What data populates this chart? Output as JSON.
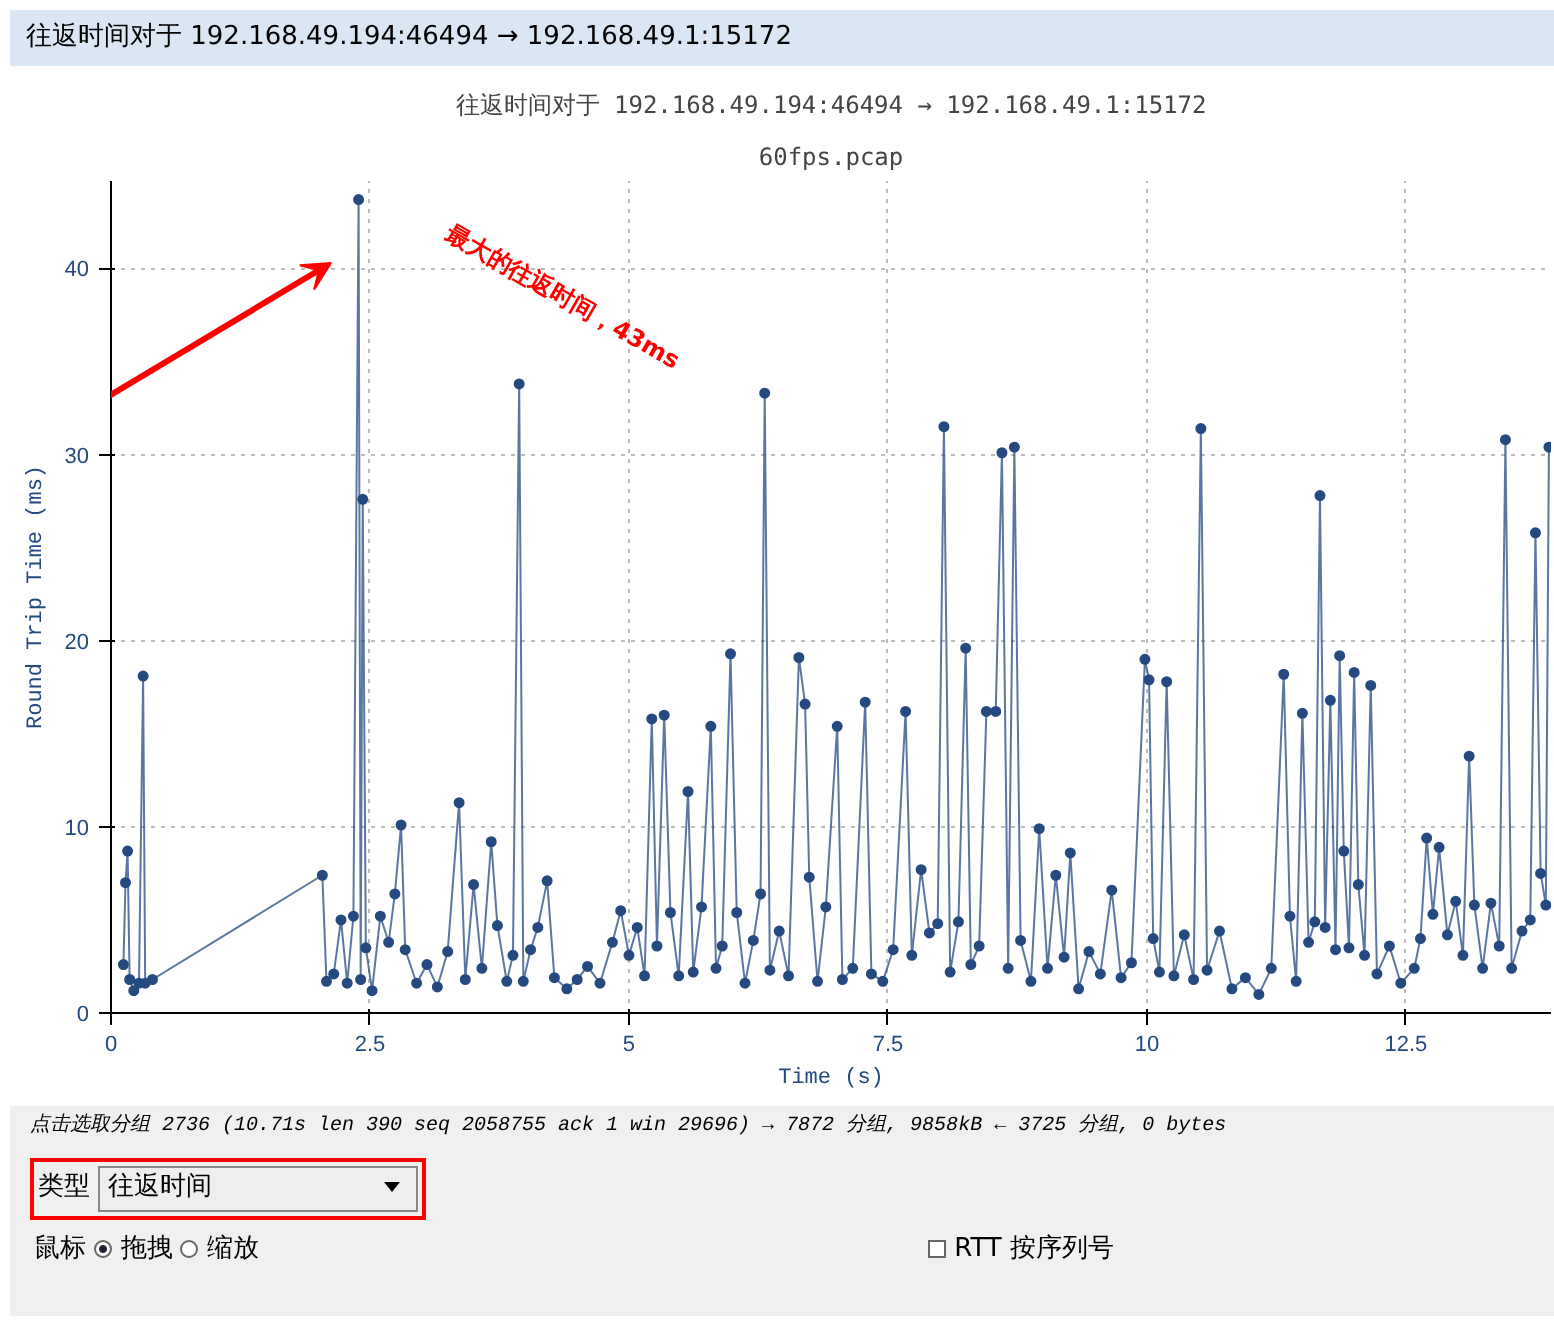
{
  "chart_data": {
    "type": "line",
    "title": "往返时间对于 192.168.49.194:46494 → 192.168.49.1:15172",
    "subtitle": "60fps.pcap",
    "xlabel": "Time (s)",
    "ylabel": "Round Trip Time (ms)",
    "x": [
      0.12,
      0.14,
      0.16,
      0.18,
      0.22,
      0.27,
      0.31,
      0.33,
      0.4,
      2.04,
      2.08,
      2.15,
      2.22,
      2.28,
      2.34,
      2.39,
      2.41,
      2.43,
      2.46,
      2.52,
      2.6,
      2.68,
      2.74,
      2.8,
      2.84,
      2.95,
      3.05,
      3.15,
      3.25,
      3.36,
      3.42,
      3.5,
      3.58,
      3.67,
      3.73,
      3.82,
      3.88,
      3.94,
      3.98,
      4.05,
      4.12,
      4.21,
      4.28,
      4.4,
      4.5,
      4.6,
      4.72,
      4.84,
      4.92,
      5.0,
      5.08,
      5.15,
      5.22,
      5.27,
      5.34,
      5.4,
      5.48,
      5.57,
      5.62,
      5.7,
      5.79,
      5.84,
      5.9,
      5.98,
      6.04,
      6.12,
      6.2,
      6.27,
      6.31,
      6.36,
      6.45,
      6.54,
      6.64,
      6.7,
      6.74,
      6.82,
      6.9,
      7.01,
      7.06,
      7.16,
      7.28,
      7.34,
      7.45,
      7.55,
      7.67,
      7.73,
      7.82,
      7.9,
      7.98,
      8.04,
      8.1,
      8.18,
      8.25,
      8.3,
      8.38,
      8.45,
      8.54,
      8.6,
      8.66,
      8.72,
      8.78,
      8.88,
      8.96,
      9.04,
      9.12,
      9.2,
      9.26,
      9.34,
      9.44,
      9.55,
      9.66,
      9.75,
      9.85,
      9.98,
      10.02,
      10.06,
      10.12,
      10.19,
      10.26,
      10.36,
      10.45,
      10.52,
      10.58,
      10.7,
      10.82,
      10.95,
      11.08,
      11.2,
      11.32,
      11.38,
      11.44,
      11.5,
      11.56,
      11.62,
      11.67,
      11.72,
      11.77,
      11.82,
      11.86,
      11.9,
      11.95,
      12.0,
      12.04,
      12.1,
      12.16,
      12.22,
      12.34,
      12.45,
      12.58,
      12.64,
      12.7,
      12.76,
      12.82,
      12.9,
      12.98,
      13.05,
      13.11,
      13.16,
      13.24,
      13.32,
      13.4,
      13.46,
      13.52,
      13.62,
      13.7,
      13.75,
      13.8,
      13.85,
      13.88
    ],
    "series": [
      {
        "color": "#244a80",
        "values": [
          2.6,
          7.0,
          8.7,
          1.8,
          1.2,
          1.6,
          18.1,
          1.6,
          1.8,
          7.4,
          1.7,
          2.1,
          5.0,
          1.6,
          5.2,
          43.7,
          1.8,
          27.6,
          3.5,
          1.2,
          5.2,
          3.8,
          6.4,
          10.1,
          3.4,
          1.6,
          2.6,
          1.4,
          3.3,
          11.3,
          1.8,
          6.9,
          2.4,
          9.2,
          4.7,
          1.7,
          3.1,
          33.8,
          1.7,
          3.4,
          4.6,
          7.1,
          1.9,
          1.3,
          1.8,
          2.5,
          1.6,
          3.8,
          5.5,
          3.1,
          4.6,
          2.0,
          15.8,
          3.6,
          16.0,
          5.4,
          2.0,
          11.9,
          2.2,
          5.7,
          15.4,
          2.4,
          3.6,
          19.3,
          5.4,
          1.6,
          3.9,
          6.4,
          33.3,
          2.3,
          4.4,
          2.0,
          19.1,
          16.6,
          7.3,
          1.7,
          5.7,
          15.4,
          1.8,
          2.4,
          16.7,
          2.1,
          1.7,
          3.4,
          16.2,
          3.1,
          7.7,
          4.3,
          4.8,
          31.5,
          2.2,
          4.9,
          19.6,
          2.6,
          3.6,
          16.2,
          16.2,
          30.1,
          2.4,
          30.4,
          3.9,
          1.7,
          9.9,
          2.4,
          7.4,
          3.0,
          8.6,
          1.3,
          3.3,
          2.1,
          6.6,
          1.9,
          2.7,
          19.0,
          17.9,
          4.0,
          2.2,
          17.8,
          2.0,
          4.2,
          1.8,
          31.4,
          2.3,
          4.4,
          1.3,
          1.9,
          1.0,
          2.4,
          18.2,
          5.2,
          1.7,
          16.1,
          3.8,
          4.9,
          27.8,
          4.6,
          16.8,
          3.4,
          19.2,
          8.7,
          3.5,
          18.3,
          6.9,
          3.1,
          17.6,
          2.1,
          3.6,
          1.6,
          2.4,
          4.0,
          9.4,
          5.3,
          8.9,
          4.2,
          6.0,
          3.1,
          13.8,
          5.8,
          2.4,
          5.9,
          3.6,
          30.8,
          2.4,
          4.4,
          5.0,
          25.8,
          7.5,
          5.8,
          30.4
        ]
      }
    ],
    "xlim": [
      0,
      13.9
    ],
    "ylim": [
      0,
      44.7
    ],
    "xticks": [
      0,
      2.5,
      5,
      7.5,
      10,
      12.5
    ],
    "yticks": [
      0,
      10,
      20,
      30,
      40
    ],
    "grid": true,
    "marker": "circle",
    "line_style": "solid",
    "annotations": [
      "最大的往返时间，43ms",
      "点击选取分组 2736 (10.71s len 390 seq 2058755 ack 1 win 29696) → 7872 分组, 9858kB ← 3725 分组, 0 bytes",
      "类型",
      "往返时间",
      "鼠标",
      "拖拽",
      "缩放",
      "RTT 按序列号"
    ]
  }
}
